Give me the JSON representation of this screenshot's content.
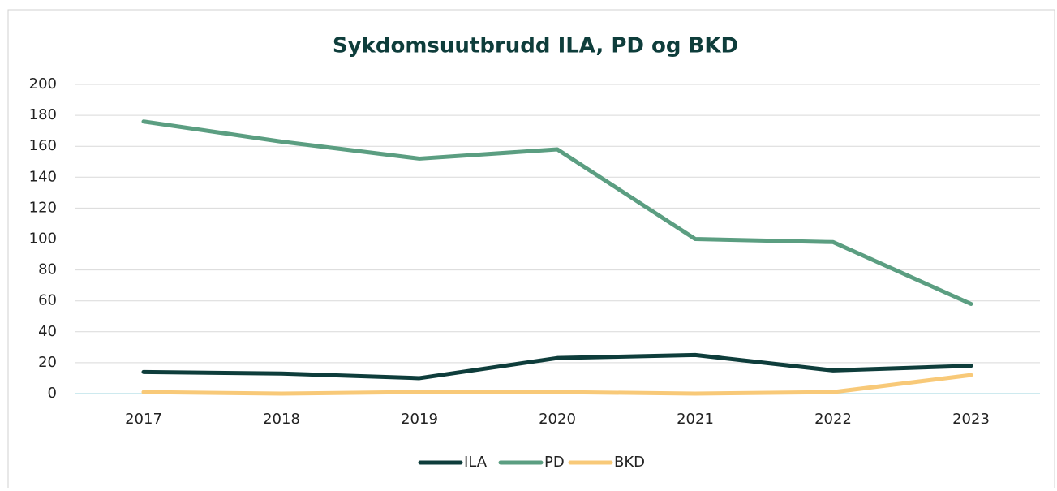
{
  "chart_data": {
    "type": "line",
    "title": "Sykdomsuutbrudd ILA, PD og BKD",
    "categories": [
      "2017",
      "2018",
      "2019",
      "2020",
      "2021",
      "2022",
      "2023"
    ],
    "series": [
      {
        "name": "ILA",
        "color": "#0e3d3b",
        "values": [
          14,
          13,
          10,
          23,
          25,
          15,
          18
        ]
      },
      {
        "name": "PD",
        "color": "#5b9e81",
        "values": [
          176,
          163,
          152,
          158,
          100,
          98,
          58
        ]
      },
      {
        "name": "BKD",
        "color": "#f8c978",
        "values": [
          1,
          0,
          1,
          1,
          0,
          1,
          12
        ]
      }
    ],
    "ylim": [
      0,
      200
    ],
    "yticks": [
      0,
      20,
      40,
      60,
      80,
      100,
      120,
      140,
      160,
      180,
      200
    ],
    "grid": true,
    "legend": "bottom"
  }
}
